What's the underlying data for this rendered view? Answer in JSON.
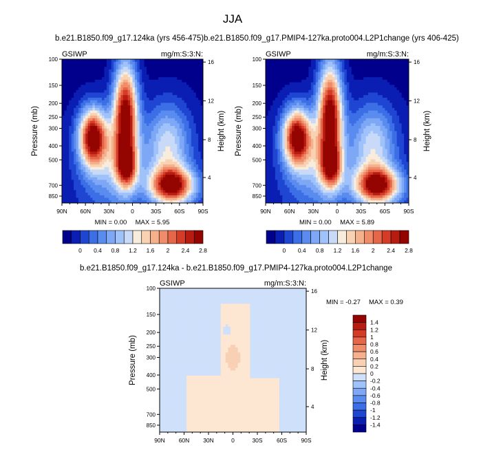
{
  "figure": {
    "title": "JJA",
    "colors": {
      "seq": [
        "#00008c",
        "#0a1eb4",
        "#1e46d2",
        "#3c6ee6",
        "#5a8cf0",
        "#7ea8f5",
        "#a0c2fa",
        "#c8daf8",
        "#f8ecdc",
        "#f8d2b2",
        "#f5b08c",
        "#f08c6a",
        "#e6664a",
        "#d43c28",
        "#b81c10",
        "#940400"
      ],
      "diff": [
        "#00008c",
        "#0a1eb4",
        "#1e46d2",
        "#3c6ee6",
        "#5a8cf0",
        "#7ea8f5",
        "#a0c2fa",
        "#cfe0fb",
        "#fde6d2",
        "#f8d0b4",
        "#f5b08c",
        "#f08c6a",
        "#e6664a",
        "#d43c28",
        "#b81c10",
        "#940400"
      ]
    }
  },
  "chart_data": [
    {
      "type": "heatmap",
      "id": "left",
      "title": "b.e21.B1850.f09_g17.124ka (yrs 456-475)",
      "left_label": "GSIWP",
      "right_label": "mg/m:S:3:N:",
      "ylabel": "Pressure (mb)",
      "ylabel_right": "Height (km)",
      "xticks": [
        "90N",
        "60N",
        "30N",
        "0",
        "30S",
        "60S",
        "90S"
      ],
      "yticks": [
        "100",
        "150",
        "200",
        "250",
        "300",
        "400",
        "500",
        "700",
        "850"
      ],
      "yticks_right": [
        "16",
        "12",
        "8",
        "4"
      ],
      "min_text": "MIN =  0.00",
      "max_text": "MAX =  5.95",
      "colorbar_labels": [
        "0",
        "0.4",
        "0.8",
        "1.2",
        "1.6",
        "2",
        "2.4",
        "2.8"
      ]
    },
    {
      "type": "heatmap",
      "id": "right",
      "title": "b.e21.B1850.f09_g17.PMIP4-127ka.proto004.L2P1change (yrs 406-425)",
      "left_label": "GSIWP",
      "right_label": "mg/m:S:3:N:",
      "ylabel": "Pressure (mb)",
      "ylabel_right": "Height (km)",
      "xticks": [
        "90N",
        "60N",
        "30N",
        "0",
        "30S",
        "60S",
        "90S"
      ],
      "yticks": [
        "100",
        "150",
        "200",
        "250",
        "300",
        "400",
        "500",
        "700",
        "850"
      ],
      "yticks_right": [
        "16",
        "12",
        "8",
        "4"
      ],
      "min_text": "MIN =  0.00",
      "max_text": "MAX =  5.89",
      "colorbar_labels": [
        "0",
        "0.4",
        "0.8",
        "1.2",
        "1.6",
        "2",
        "2.4",
        "2.8"
      ]
    },
    {
      "type": "heatmap",
      "id": "diff",
      "title": "b.e21.B1850.f09_g17.124ka - b.e21.B1850.f09_g17.PMIP4-127ka.proto004.L2P1change",
      "left_label": "GSIWP",
      "right_label": "mg/m:S:3:N:",
      "ylabel": "Pressure (mb)",
      "ylabel_right": "Height (km)",
      "xticks": [
        "90N",
        "60N",
        "30N",
        "0",
        "30S",
        "60S",
        "90S"
      ],
      "yticks": [
        "100",
        "150",
        "200",
        "250",
        "300",
        "400",
        "500",
        "700",
        "850"
      ],
      "yticks_right": [
        "16",
        "12",
        "8",
        "4"
      ],
      "min_text": "MIN = -0.27",
      "max_text": "MAX =  0.39",
      "colorbar_labels": [
        "1.4",
        "1.2",
        "1",
        "0.8",
        "0.6",
        "0.4",
        "0.2",
        "0",
        "-0.2",
        "-0.4",
        "-0.6",
        "-0.8",
        "-1",
        "-1.2",
        "-1.4"
      ]
    }
  ]
}
